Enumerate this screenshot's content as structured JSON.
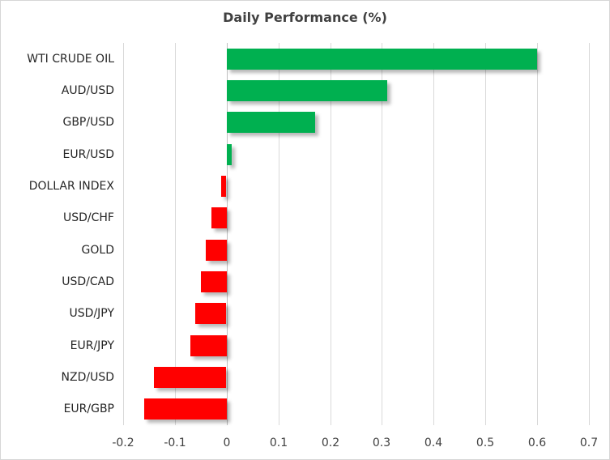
{
  "chart_data": {
    "type": "bar",
    "orientation": "horizontal",
    "title": "Daily Performance (%)",
    "xlabel": "",
    "ylabel": "",
    "categories": [
      "WTI CRUDE OIL",
      "AUD/USD",
      "GBP/USD",
      "EUR/USD",
      "DOLLAR INDEX",
      "USD/CHF",
      "GOLD",
      "USD/CAD",
      "USD/JPY",
      "EUR/JPY",
      "NZD/USD",
      "EUR/GBP"
    ],
    "values": [
      0.6,
      0.31,
      0.17,
      0.01,
      -0.01,
      -0.03,
      -0.04,
      -0.05,
      -0.06,
      -0.07,
      -0.14,
      -0.16
    ],
    "xlim": [
      -0.2,
      0.7
    ],
    "xticks": [
      -0.2,
      -0.1,
      0,
      0.1,
      0.2,
      0.3,
      0.4,
      0.5,
      0.6,
      0.7
    ],
    "xtick_labels": [
      "-0.2",
      "-0.1",
      "0",
      "0.1",
      "0.2",
      "0.3",
      "0.4",
      "0.5",
      "0.6",
      "0.7"
    ],
    "grid": "vertical-only",
    "legend": false,
    "colors": {
      "positive": "#00B050",
      "negative": "#FF0000",
      "gridline": "#d9d9d9",
      "zero_axis": "#bfbfbf",
      "title_text": "#404040",
      "label_text": "#262626",
      "tick_text": "#404040"
    }
  }
}
